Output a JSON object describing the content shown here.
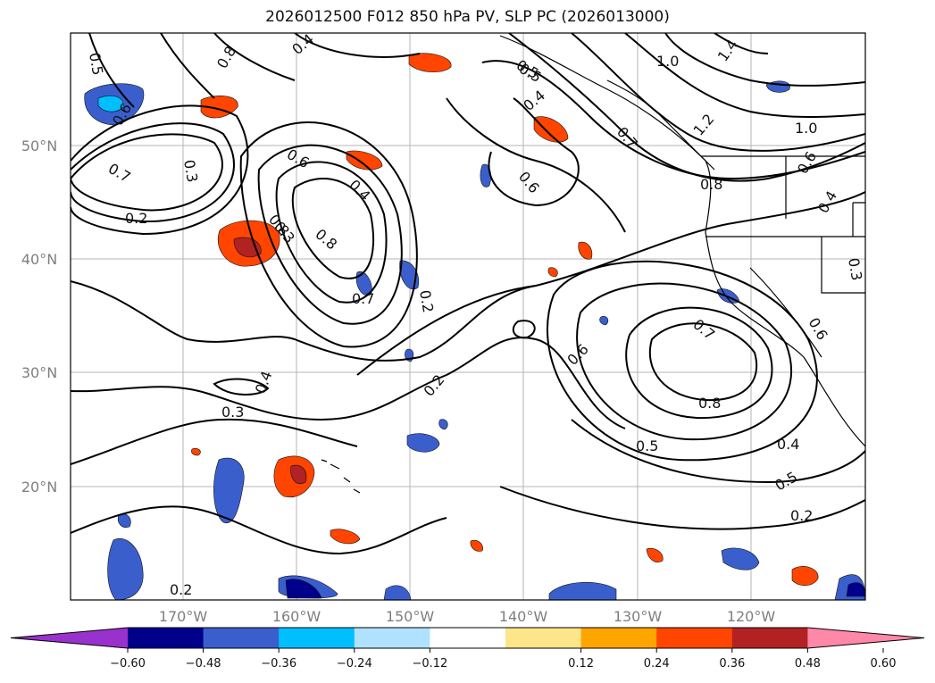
{
  "title": "2026012500 F012 850 hPa PV, SLP PC (2026013000)",
  "axes": {
    "lat_labels": [
      "50°N",
      "40°N",
      "30°N",
      "20°N"
    ],
    "lon_labels": [
      "170°W",
      "160°W",
      "150°W",
      "140°W",
      "130°W",
      "120°W"
    ]
  },
  "contour_labels": [
    "0.5",
    "0.8",
    "0.7",
    "0.6",
    "0.2",
    "0.4",
    "0.3",
    "0.8",
    "0.6",
    "0.4",
    "0.8",
    "0.2",
    "0.5",
    "0.4",
    "0.6",
    "1.0",
    "1.4",
    "1.2",
    "1.0",
    "0.7",
    "0.8",
    "0.6",
    "0.4",
    "0.3",
    "0.7",
    "0.6",
    "0.8",
    "0.5",
    "0.4",
    "0.5",
    "0.2",
    "0.3",
    "0.4",
    "0.2",
    "0.6",
    "0.2",
    "0.7",
    "0.5",
    "0.3"
  ],
  "colorbar": {
    "ticks": [
      "−0.60",
      "−0.48",
      "−0.36",
      "−0.24",
      "−0.12",
      "0.12",
      "0.24",
      "0.36",
      "0.48",
      "0.60"
    ],
    "colors": [
      "#9932cc",
      "#00008b",
      "#3a5fcd",
      "#00bfff",
      "#b0e2ff",
      "#ffffff",
      "#fde68a",
      "#ffa500",
      "#ff4500",
      "#b22222",
      "#ff87a8"
    ]
  }
}
